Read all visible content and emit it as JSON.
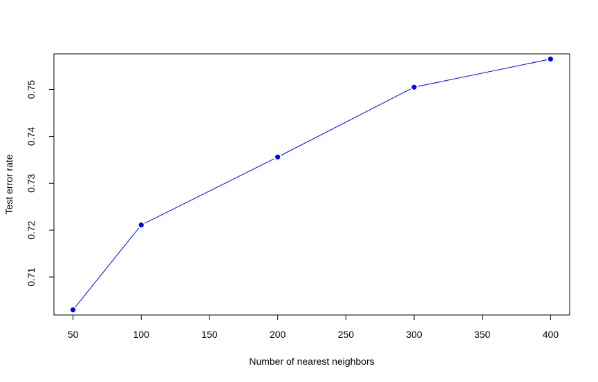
{
  "chart_data": {
    "type": "line",
    "title": "",
    "xlabel": "Number of nearest neighbors",
    "ylabel": "Test error rate",
    "x": [
      50,
      100,
      200,
      300,
      400
    ],
    "y": [
      0.703,
      0.7211,
      0.7356,
      0.7505,
      0.7565
    ],
    "x_ticks": [
      50,
      100,
      150,
      200,
      250,
      300,
      350,
      400
    ],
    "x_tick_labels": [
      "50",
      "100",
      "150",
      "200",
      "250",
      "300",
      "350",
      "400"
    ],
    "y_ticks": [
      0.71,
      0.72,
      0.73,
      0.74,
      0.75
    ],
    "y_tick_labels": [
      "0.71",
      "0.72",
      "0.73",
      "0.74",
      "0.75"
    ],
    "xlim": [
      36,
      414
    ],
    "ylim": [
      0.7019,
      0.7576
    ],
    "grid": false,
    "legend": "none",
    "marker": "filled-circle",
    "colors": {
      "series": "#0000ff",
      "axis": "#000000",
      "background": "#ffffff"
    }
  }
}
